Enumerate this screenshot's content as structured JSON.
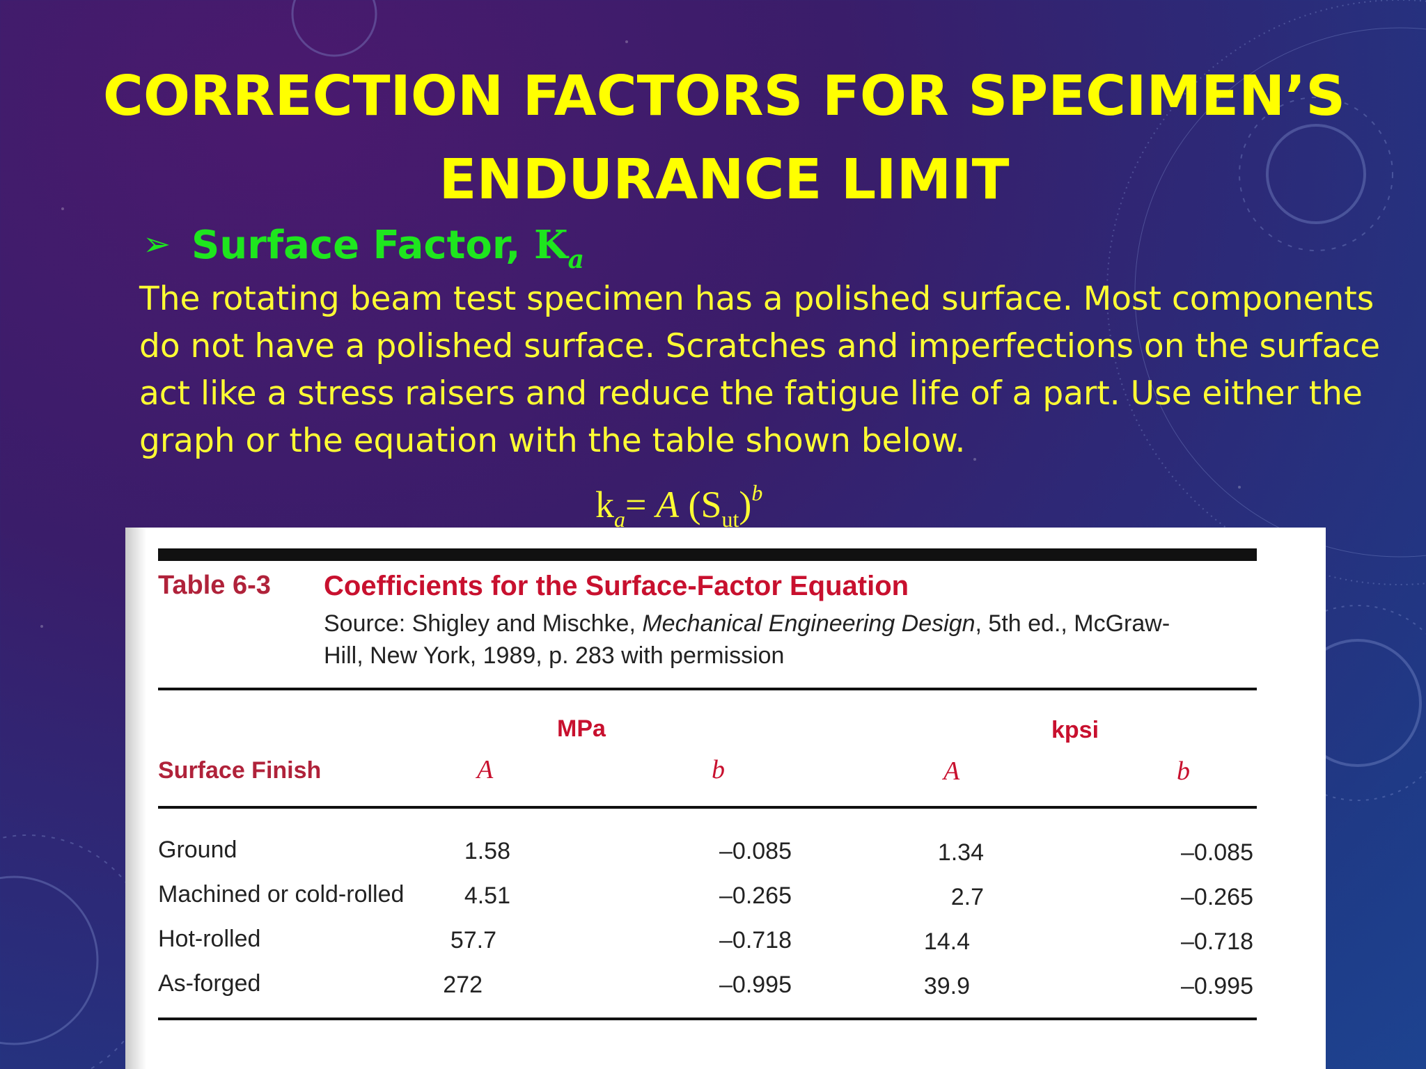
{
  "slide": {
    "title_line1": "CORRECTION FACTORS FOR SPECIMEN’S",
    "title_line2": "ENDURANCE LIMIT",
    "bullet_arrow": "➢",
    "bullet_label": "Surface Factor,",
    "bullet_symbol": "K",
    "bullet_symbol_sub": "a",
    "paragraph_lines": [
      "The rotating beam test specimen has a polished surface. Most components",
      "do not have a polished surface. Scratches and imperfections on the surface",
      "act like a stress raisers and reduce the fatigue life of a part. Use either the",
      "graph or the equation with the table shown below."
    ],
    "formula": {
      "k": "k",
      "k_sub": "a",
      "eq": "= ",
      "A": "A",
      "open": " (S",
      "s_sub": "ut",
      "close": ")",
      "exp": "b"
    }
  },
  "table": {
    "label": "Table 6-3",
    "title": "Coefficients for the Surface-Factor Equation",
    "source_prefix": "Source: Shigley and Mischke, ",
    "source_book": "Mechanical Engineering Design",
    "source_suffix_line1": ", 5th ed., McGraw-",
    "source_line2": "Hill, New York, 1989, p. 283 with permission",
    "group_mpa": "MPa",
    "group_kpsi": "kpsi",
    "col_finish": "Surface Finish",
    "col_A": "A",
    "col_b": "b",
    "rows": [
      {
        "finish": "Ground",
        "mpa_A": "1.58",
        "mpa_b": "–0.085",
        "kpsi_A": "1.34",
        "kpsi_b": "–0.085"
      },
      {
        "finish": "Machined or cold-rolled",
        "mpa_A": "4.51",
        "mpa_b": "–0.265",
        "kpsi_A": "2.7",
        "kpsi_b": "–0.265"
      },
      {
        "finish": "Hot-rolled",
        "mpa_A": "57.7",
        "mpa_b": "–0.718",
        "kpsi_A": "14.4",
        "kpsi_b": "–0.718"
      },
      {
        "finish": "As-forged",
        "mpa_A": "272",
        "mpa_b": "–0.995",
        "kpsi_A": "39.9",
        "kpsi_b": "–0.995"
      }
    ]
  },
  "colors": {
    "title": "#ffff00",
    "bullet": "#1ee61e",
    "body": "#ffff33",
    "table_accent": "#c8102e"
  }
}
